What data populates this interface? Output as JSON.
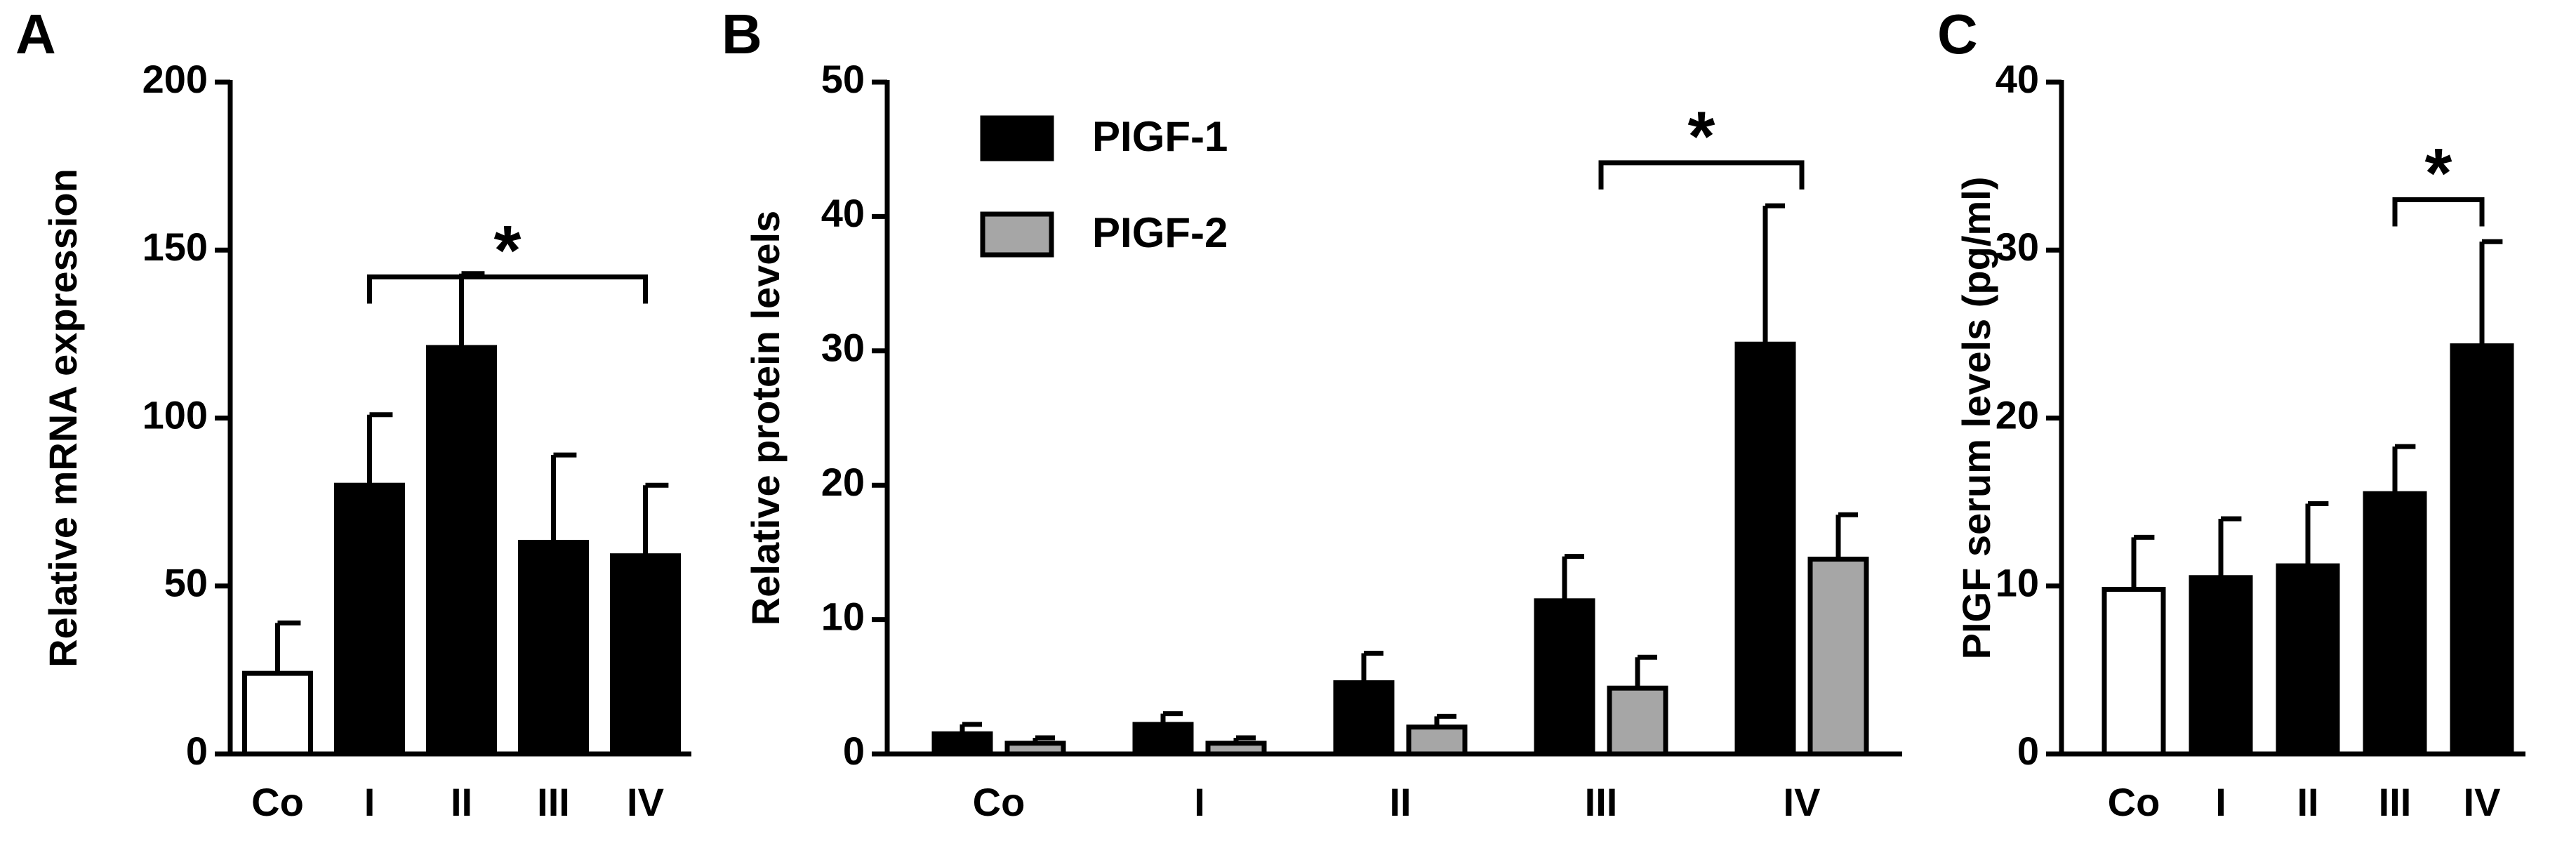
{
  "chart_data": [
    {
      "type": "bar",
      "panel": "A",
      "y_label": "Relative mRNA expression",
      "categories": [
        "Co",
        "I",
        "II",
        "III",
        "IV"
      ],
      "values": [
        24,
        80,
        121,
        63,
        59
      ],
      "errors": [
        15,
        21,
        22,
        26,
        21
      ],
      "colors": [
        "#ffffff",
        "#000000",
        "#000000",
        "#000000",
        "#000000"
      ],
      "ylim": [
        0,
        200
      ],
      "yticks": [
        0,
        50,
        100,
        150,
        200
      ],
      "bracket": {
        "label": "*",
        "start": 1,
        "end": 4,
        "y": 142
      }
    },
    {
      "type": "grouped-bar",
      "panel": "B",
      "y_label": "Relative protein levels",
      "categories": [
        "Co",
        "I",
        "II",
        "III",
        "IV"
      ],
      "series": [
        {
          "name": "PIGF-1",
          "color": "#000000",
          "values": [
            1.5,
            2.2,
            5.3,
            11.4,
            30.5
          ],
          "errors": [
            0.7,
            0.8,
            2.2,
            3.3,
            10.3
          ]
        },
        {
          "name": "PIGF-2",
          "color": "#a6a6a6",
          "values": [
            0.8,
            0.8,
            2.0,
            4.9,
            14.5
          ],
          "errors": [
            0.4,
            0.4,
            0.8,
            2.3,
            3.3
          ]
        }
      ],
      "ylim": [
        0,
        50
      ],
      "yticks": [
        0,
        10,
        20,
        30,
        40,
        50
      ],
      "bracket": {
        "label": "*",
        "start": 3,
        "end": 4,
        "y": 44
      }
    },
    {
      "type": "bar",
      "panel": "C",
      "y_label": "PIGF serum levels (pg/ml)",
      "categories": [
        "Co",
        "I",
        "II",
        "III",
        "IV"
      ],
      "values": [
        9.8,
        10.5,
        11.2,
        15.5,
        24.3
      ],
      "errors": [
        3.1,
        3.5,
        3.7,
        2.8,
        6.2
      ],
      "colors": [
        "#ffffff",
        "#000000",
        "#000000",
        "#000000",
        "#000000"
      ],
      "ylim": [
        0,
        40
      ],
      "yticks": [
        0,
        10,
        20,
        30,
        40
      ],
      "bracket": {
        "label": "*",
        "start": 3,
        "end": 4,
        "y": 33
      }
    }
  ]
}
